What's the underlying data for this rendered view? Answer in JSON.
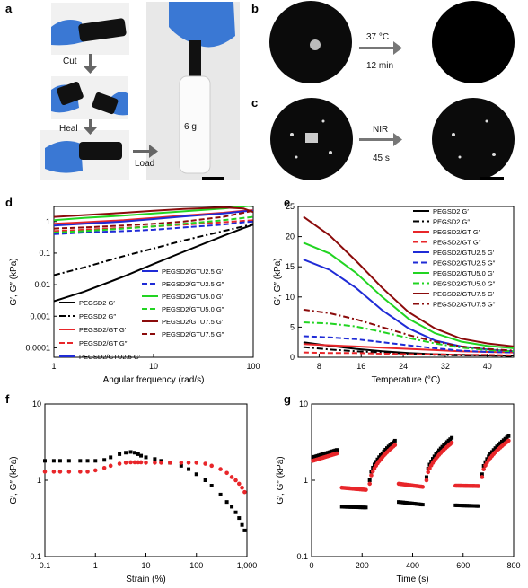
{
  "letters": {
    "a": "a",
    "b": "b",
    "c": "c",
    "d": "d",
    "e": "e",
    "f": "f",
    "g": "g"
  },
  "panel_a": {
    "cut": "Cut",
    "heal": "Heal",
    "load": "Load",
    "weight": "6 g"
  },
  "panel_b": {
    "temp": "37 °C",
    "time": "12 min"
  },
  "panel_c": {
    "trigger": "NIR",
    "time": "45 s"
  },
  "chart_data": [
    {
      "id": "d",
      "type": "line",
      "xlabel": "Angular frequency (rad/s)",
      "ylabel": "G′, G″ (kPa)",
      "xscale": "log",
      "yscale": "log",
      "xlim": [
        1,
        100
      ],
      "ylim": [
        5e-05,
        3
      ],
      "xticks": [
        "1",
        "10",
        "100"
      ],
      "yticks": [
        "0.0001",
        "0.001",
        "0.01",
        "0.1",
        "1"
      ],
      "legend": [
        "PEGSD2 G′",
        "PEGSD2 G″",
        "PEGSD2/GT G′",
        "PEGSD2/GT G″",
        "PEGSD2/GTU2.5 G′",
        "PEGSD2/GTU2.5 G″",
        "PEGSD2/GTU5.0 G′",
        "PEGSD2/GTU5.0 G″",
        "PEGSD2/GTU7.5 G′",
        "PEGSD2/GTU7.5 G″"
      ],
      "series": [
        {
          "name": "PEGSD2 G′",
          "color": "#000000",
          "dash": "solid",
          "x": [
            1,
            2,
            5,
            10,
            20,
            50,
            80,
            100
          ],
          "y": [
            0.003,
            0.006,
            0.018,
            0.045,
            0.11,
            0.35,
            0.62,
            0.8
          ]
        },
        {
          "name": "PEGSD2 G″",
          "color": "#000000",
          "dash": "dashdot",
          "x": [
            1,
            2,
            5,
            10,
            20,
            50,
            80,
            100
          ],
          "y": [
            0.02,
            0.035,
            0.08,
            0.14,
            0.25,
            0.5,
            0.7,
            0.85
          ]
        },
        {
          "name": "PEGSD2/GT G′",
          "color": "#e8262a",
          "dash": "solid",
          "x": [
            1,
            2,
            5,
            10,
            20,
            50,
            80,
            100
          ],
          "y": [
            0.85,
            0.95,
            1.1,
            1.3,
            1.55,
            1.9,
            2.2,
            2.3
          ]
        },
        {
          "name": "PEGSD2/GT G″",
          "color": "#e8262a",
          "dash": "dash",
          "x": [
            1,
            2,
            5,
            10,
            20,
            50,
            80,
            100
          ],
          "y": [
            0.5,
            0.55,
            0.63,
            0.7,
            0.8,
            0.95,
            1.05,
            1.1
          ]
        },
        {
          "name": "PEGSD2/GTU2.5 G′",
          "color": "#1f2bd6",
          "dash": "solid",
          "x": [
            1,
            2,
            5,
            10,
            20,
            50,
            80,
            100
          ],
          "y": [
            0.75,
            0.85,
            1.0,
            1.2,
            1.45,
            1.8,
            2.1,
            2.2
          ]
        },
        {
          "name": "PEGSD2/GTU2.5 G″",
          "color": "#1f2bd6",
          "dash": "dash",
          "x": [
            1,
            2,
            5,
            10,
            20,
            50,
            80,
            100
          ],
          "y": [
            0.4,
            0.45,
            0.5,
            0.55,
            0.65,
            0.8,
            0.95,
            1.0
          ]
        },
        {
          "name": "PEGSD2/GTU5.0 G′",
          "color": "#22d422",
          "dash": "solid",
          "x": [
            1,
            2,
            5,
            10,
            20,
            50,
            80,
            100
          ],
          "y": [
            1.1,
            1.3,
            1.55,
            1.8,
            2.1,
            2.6,
            3.0,
            3.2
          ]
        },
        {
          "name": "PEGSD2/GTU5.0 G″",
          "color": "#22d422",
          "dash": "dash",
          "x": [
            1,
            2,
            5,
            10,
            20,
            50,
            80,
            100
          ],
          "y": [
            0.45,
            0.5,
            0.6,
            0.7,
            0.85,
            1.1,
            1.3,
            1.4
          ]
        },
        {
          "name": "PEGSD2/GTU7.5 G′",
          "color": "#8b0b0b",
          "dash": "solid",
          "x": [
            1,
            2,
            5,
            10,
            20,
            50,
            80,
            100
          ],
          "y": [
            1.4,
            1.6,
            1.9,
            2.2,
            2.5,
            2.8,
            2.6,
            2.0
          ]
        },
        {
          "name": "PEGSD2/GTU7.5 G″",
          "color": "#8b0b0b",
          "dash": "dash",
          "x": [
            1,
            2,
            5,
            10,
            20,
            50,
            80,
            100
          ],
          "y": [
            0.6,
            0.65,
            0.75,
            0.85,
            1.0,
            1.4,
            1.9,
            2.2
          ]
        }
      ]
    },
    {
      "id": "e",
      "type": "line",
      "xlabel": "Temperature (°C)",
      "ylabel": "G′, G″ (kPa)",
      "xlim": [
        4,
        45
      ],
      "ylim": [
        0,
        25
      ],
      "xticks": [
        "8",
        "16",
        "24",
        "32",
        "40"
      ],
      "yticks": [
        "0",
        "5",
        "10",
        "15",
        "20",
        "25"
      ],
      "legend": [
        "PEGSD2 G′",
        "PEGSD2 G″",
        "PEGSD2/GT G′",
        "PEGSD2/GT G″",
        "PEGSD2/GTU2.5 G′",
        "PEGSD2/GTU2.5 G″",
        "PEGSD2/GTU5.0 G′",
        "PEGSD2/GTU5.0 G″",
        "PEGSD2/GTU7.5 G′",
        "PEGSD2/GTU7.5 G″"
      ],
      "series": [
        {
          "name": "PEGSD2 G′",
          "color": "#000000",
          "dash": "solid",
          "x": [
            5,
            10,
            15,
            20,
            25,
            30,
            35,
            40,
            45
          ],
          "y": [
            2.5,
            1.9,
            1.4,
            1.0,
            0.7,
            0.5,
            0.4,
            0.3,
            0.3
          ]
        },
        {
          "name": "PEGSD2 G″",
          "color": "#000000",
          "dash": "dashdot",
          "x": [
            5,
            10,
            15,
            20,
            25,
            30,
            35,
            40,
            45
          ],
          "y": [
            1.7,
            1.3,
            1.0,
            0.8,
            0.6,
            0.4,
            0.3,
            0.3,
            0.2
          ]
        },
        {
          "name": "PEGSD2/GT G′",
          "color": "#e8262a",
          "dash": "solid",
          "x": [
            5,
            10,
            15,
            20,
            25,
            30,
            35,
            40,
            45
          ],
          "y": [
            2.2,
            2.0,
            1.8,
            1.6,
            1.4,
            1.2,
            1.0,
            0.9,
            0.8
          ]
        },
        {
          "name": "PEGSD2/GT G″",
          "color": "#e8262a",
          "dash": "dash",
          "x": [
            5,
            10,
            15,
            20,
            25,
            30,
            35,
            40,
            45
          ],
          "y": [
            0.8,
            0.7,
            0.7,
            0.6,
            0.5,
            0.5,
            0.4,
            0.4,
            0.3
          ]
        },
        {
          "name": "PEGSD2/GTU2.5 G′",
          "color": "#1f2bd6",
          "dash": "solid",
          "x": [
            5,
            10,
            15,
            20,
            25,
            30,
            35,
            40,
            45
          ],
          "y": [
            16.2,
            14.5,
            11.5,
            7.8,
            4.8,
            2.8,
            1.8,
            1.3,
            1.0
          ]
        },
        {
          "name": "PEGSD2/GTU2.5 G″",
          "color": "#1f2bd6",
          "dash": "dash",
          "x": [
            5,
            10,
            15,
            20,
            25,
            30,
            35,
            40,
            45
          ],
          "y": [
            3.5,
            3.3,
            3.0,
            2.5,
            2.0,
            1.5,
            1.1,
            0.9,
            0.8
          ]
        },
        {
          "name": "PEGSD2/GTU5.0 G′",
          "color": "#22d422",
          "dash": "solid",
          "x": [
            5,
            10,
            15,
            20,
            25,
            30,
            35,
            40,
            45
          ],
          "y": [
            19,
            17.2,
            14,
            10,
            6.4,
            4.0,
            2.6,
            1.9,
            1.5
          ]
        },
        {
          "name": "PEGSD2/GTU5.0 G″",
          "color": "#22d422",
          "dash": "dashdot",
          "x": [
            5,
            10,
            15,
            20,
            25,
            30,
            35,
            40,
            45
          ],
          "y": [
            5.8,
            5.6,
            5.1,
            4.2,
            3.2,
            2.3,
            1.6,
            1.2,
            1.0
          ]
        },
        {
          "name": "PEGSD2/GTU7.5 G′",
          "color": "#8b0b0b",
          "dash": "solid",
          "x": [
            5,
            10,
            15,
            20,
            25,
            30,
            35,
            40,
            45
          ],
          "y": [
            23.3,
            20.2,
            16,
            11.5,
            7.5,
            4.8,
            3.1,
            2.3,
            1.8
          ]
        },
        {
          "name": "PEGSD2/GTU7.5 G″",
          "color": "#8b0b0b",
          "dash": "dashdot",
          "x": [
            5,
            10,
            15,
            20,
            25,
            30,
            35,
            40,
            45
          ],
          "y": [
            7.9,
            7.3,
            6.3,
            5.0,
            3.7,
            2.6,
            1.8,
            1.4,
            1.1
          ]
        }
      ]
    },
    {
      "id": "f",
      "type": "scatter",
      "xlabel": "Strain (%)",
      "ylabel": "G′, G″ (kPa)",
      "xscale": "log",
      "yscale": "log",
      "xlim": [
        0.1,
        1000
      ],
      "ylim": [
        0.1,
        10
      ],
      "xticks": [
        "0.1",
        "1",
        "10",
        "100",
        "1,000"
      ],
      "yticks": [
        "0.1",
        "1",
        "10"
      ],
      "series": [
        {
          "name": "",
          "color": "#000000",
          "x": [
            0.1,
            0.15,
            0.2,
            0.3,
            0.5,
            0.7,
            1,
            1.5,
            2,
            3,
            4,
            5,
            6,
            7,
            8,
            10,
            15,
            20,
            30,
            50,
            70,
            100,
            150,
            200,
            300,
            400,
            500,
            600,
            700,
            800,
            900
          ],
          "y": [
            1.8,
            1.8,
            1.8,
            1.8,
            1.8,
            1.8,
            1.8,
            1.85,
            2.0,
            2.2,
            2.3,
            2.35,
            2.3,
            2.2,
            2.1,
            2.0,
            1.9,
            1.8,
            1.7,
            1.55,
            1.4,
            1.2,
            1.0,
            0.85,
            0.65,
            0.52,
            0.45,
            0.38,
            0.32,
            0.26,
            0.22
          ]
        },
        {
          "name": "",
          "color": "#e8262a",
          "x": [
            0.1,
            0.15,
            0.2,
            0.3,
            0.5,
            0.7,
            1,
            1.5,
            2,
            3,
            4,
            5,
            6,
            7,
            8,
            10,
            15,
            20,
            30,
            50,
            70,
            100,
            150,
            200,
            300,
            400,
            500,
            600,
            700,
            800,
            900
          ],
          "y": [
            1.3,
            1.3,
            1.3,
            1.3,
            1.3,
            1.3,
            1.35,
            1.45,
            1.55,
            1.65,
            1.7,
            1.72,
            1.72,
            1.72,
            1.72,
            1.7,
            1.7,
            1.7,
            1.7,
            1.7,
            1.7,
            1.7,
            1.65,
            1.55,
            1.4,
            1.25,
            1.1,
            1.0,
            0.9,
            0.8,
            0.7
          ]
        }
      ]
    },
    {
      "id": "g",
      "type": "scatter",
      "xlabel": "Time (s)",
      "ylabel": "G′, G″ (kPa)",
      "yscale": "log",
      "xlim": [
        0,
        800
      ],
      "ylim": [
        0.1,
        10
      ],
      "xticks": [
        "0",
        "200",
        "400",
        "600",
        "800"
      ],
      "yticks": [
        "0.1",
        "1",
        "10"
      ],
      "series": [
        {
          "name": "",
          "color": "#000000",
          "segments": [
            {
              "x": [
                5,
                100
              ],
              "y": [
                2.0,
                2.5
              ]
            },
            {
              "x": [
                120,
                215
              ],
              "y": [
                0.45,
                0.44
              ]
            },
            {
              "x": [
                230,
                330
              ],
              "y": [
                1.0,
                3.3
              ]
            },
            {
              "x": [
                345,
                440
              ],
              "y": [
                0.52,
                0.48
              ]
            },
            {
              "x": [
                455,
                555
              ],
              "y": [
                1.1,
                3.6
              ]
            },
            {
              "x": [
                570,
                660
              ],
              "y": [
                0.47,
                0.46
              ]
            },
            {
              "x": [
                675,
                780
              ],
              "y": [
                1.2,
                3.8
              ]
            }
          ]
        },
        {
          "name": "",
          "color": "#e8262a",
          "segments": [
            {
              "x": [
                5,
                100
              ],
              "y": [
                1.8,
                2.25
              ]
            },
            {
              "x": [
                120,
                215
              ],
              "y": [
                0.8,
                0.75
              ]
            },
            {
              "x": [
                230,
                330
              ],
              "y": [
                0.9,
                2.9
              ]
            },
            {
              "x": [
                345,
                440
              ],
              "y": [
                0.9,
                0.82
              ]
            },
            {
              "x": [
                455,
                555
              ],
              "y": [
                1.0,
                3.1
              ]
            },
            {
              "x": [
                570,
                660
              ],
              "y": [
                0.85,
                0.84
              ]
            },
            {
              "x": [
                675,
                780
              ],
              "y": [
                1.1,
                3.3
              ]
            }
          ]
        }
      ]
    }
  ]
}
